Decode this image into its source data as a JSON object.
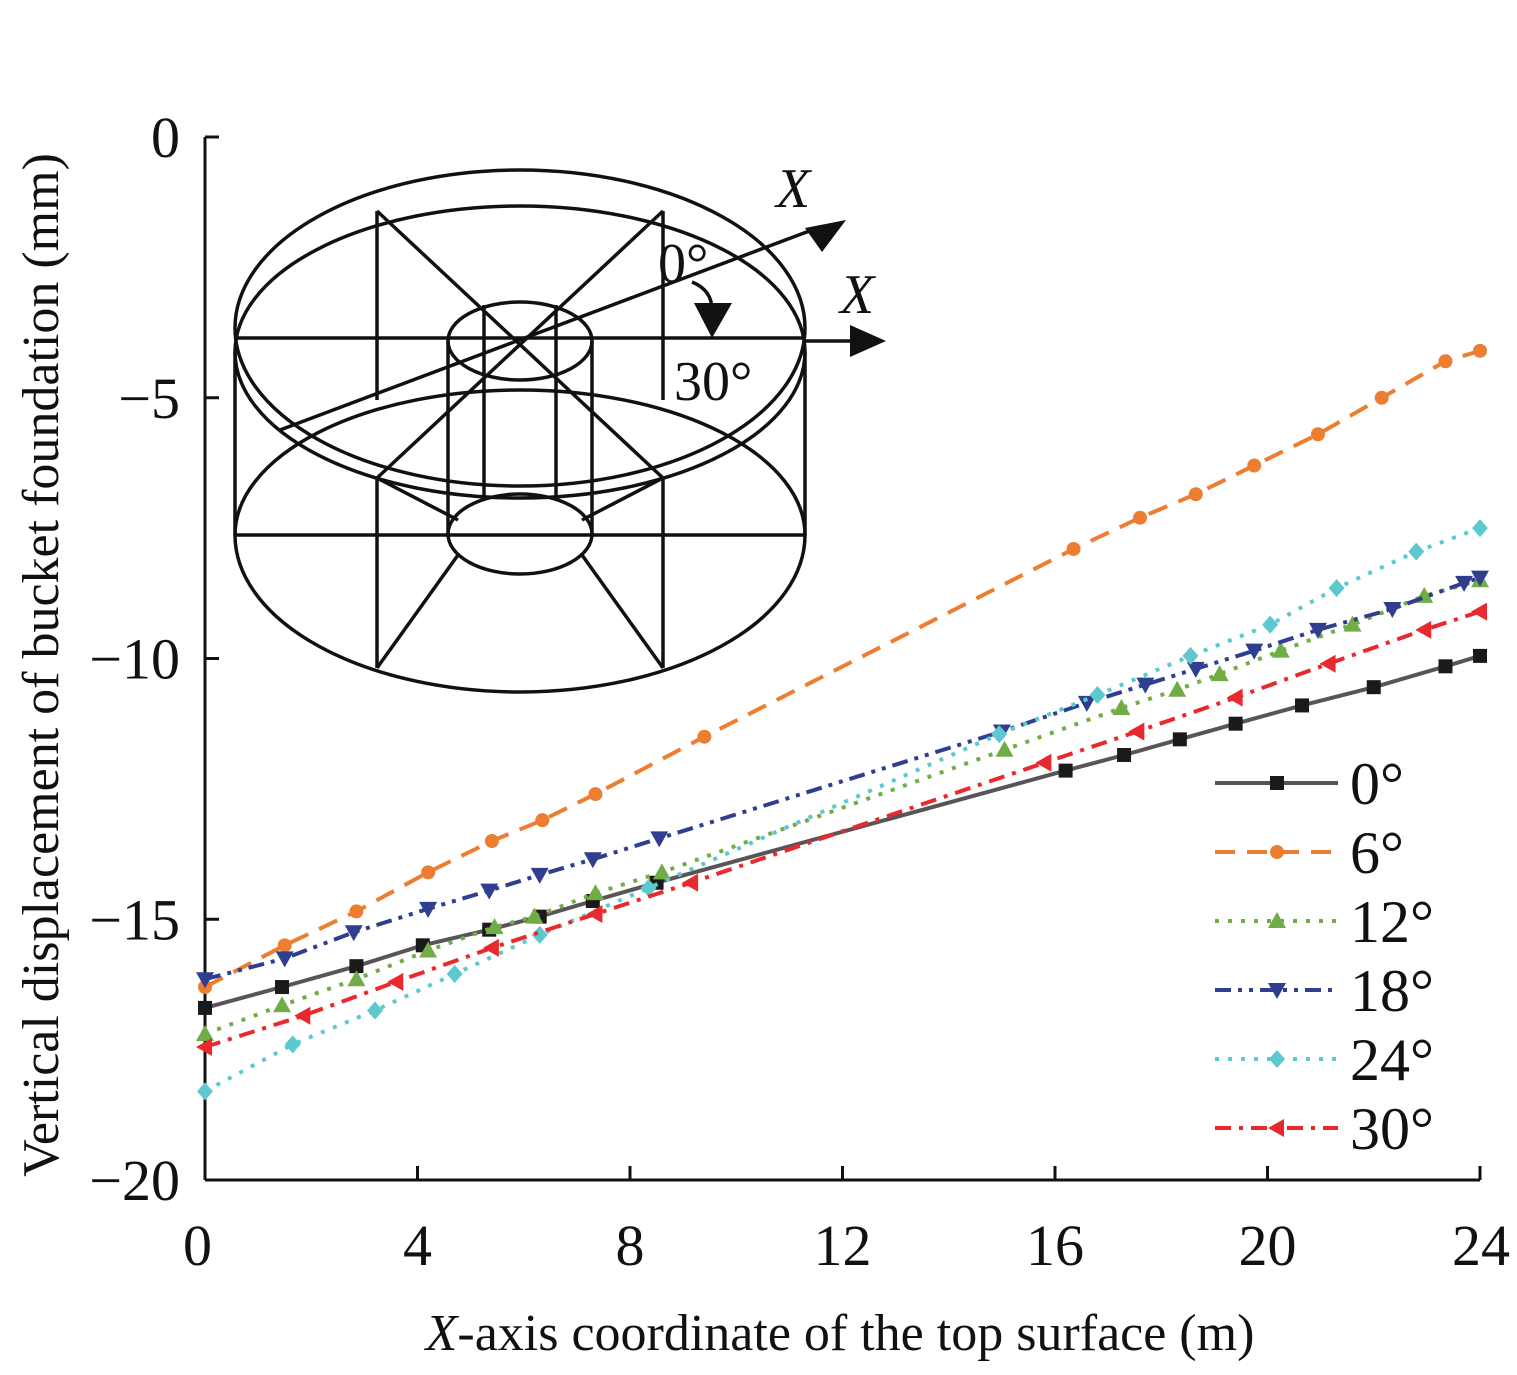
{
  "chart_data": {
    "type": "line",
    "title": "",
    "xlabel_prefix": "X",
    "xlabel_rest": "-axis coordinate of the top surface (m)",
    "ylabel": "Vertical displacement of bucket foundation (mm)",
    "xlim": [
      0,
      24
    ],
    "ylim": [
      -20,
      0
    ],
    "xticks": [
      0,
      4,
      8,
      12,
      16,
      20,
      24
    ],
    "xtick_labels": [
      "0",
      "4",
      "8",
      "12",
      "16",
      "20",
      "24"
    ],
    "yticks": [
      0,
      -5,
      -10,
      -15,
      -20
    ],
    "ytick_labels": [
      "0",
      "−5",
      "−10",
      "−15",
      "−20"
    ],
    "legend_position": "bottom-right",
    "series": [
      {
        "name": "0°",
        "color": "#595457",
        "marker_color": "#1a1a1a",
        "marker": "square",
        "dash": "solid",
        "x": [
          0,
          1.45,
          2.85,
          4.1,
          5.35,
          6.3,
          7.3,
          8.5,
          16.2,
          17.3,
          18.35,
          19.4,
          20.65,
          22.0,
          23.35,
          24.0
        ],
        "y": [
          -16.7,
          -16.3,
          -15.9,
          -15.5,
          -15.2,
          -14.95,
          -14.65,
          -14.3,
          -12.15,
          -11.85,
          -11.55,
          -11.25,
          -10.9,
          -10.55,
          -10.15,
          -9.95
        ]
      },
      {
        "name": "6°",
        "color": "#ed7d31",
        "marker_color": "#ed7d31",
        "marker": "circle",
        "dash": "dashed",
        "x": [
          0,
          1.5,
          2.85,
          4.2,
          5.4,
          6.35,
          7.35,
          9.4,
          16.35,
          17.6,
          18.65,
          19.75,
          20.95,
          22.15,
          23.35,
          24.0
        ],
        "y": [
          -16.3,
          -15.5,
          -14.85,
          -14.1,
          -13.5,
          -13.1,
          -12.6,
          -11.5,
          -7.9,
          -7.3,
          -6.85,
          -6.3,
          -5.7,
          -5.0,
          -4.3,
          -4.1
        ]
      },
      {
        "name": "12°",
        "color": "#70ad47",
        "marker_color": "#70ad47",
        "marker": "triangle-up",
        "dash": "dotted",
        "x": [
          0,
          1.45,
          2.85,
          4.2,
          5.45,
          6.2,
          7.35,
          8.6,
          15.05,
          17.25,
          18.3,
          19.1,
          20.25,
          21.6,
          22.95,
          24.0
        ],
        "y": [
          -17.2,
          -16.65,
          -16.15,
          -15.6,
          -15.15,
          -14.95,
          -14.5,
          -14.1,
          -11.75,
          -10.95,
          -10.6,
          -10.3,
          -9.85,
          -9.35,
          -8.8,
          -8.5
        ]
      },
      {
        "name": "18°",
        "color": "#2f3e8f",
        "marker_color": "#2f3e8f",
        "marker": "triangle-down",
        "dash": "dash-dot-dot",
        "x": [
          0,
          1.5,
          2.8,
          4.2,
          5.35,
          6.3,
          7.3,
          8.55,
          15.0,
          16.6,
          17.7,
          18.65,
          19.75,
          20.95,
          22.35,
          23.7,
          24.0
        ],
        "y": [
          -16.15,
          -15.75,
          -15.25,
          -14.8,
          -14.45,
          -14.15,
          -13.85,
          -13.45,
          -11.4,
          -10.85,
          -10.5,
          -10.2,
          -9.85,
          -9.45,
          -9.05,
          -8.55,
          -8.45
        ]
      },
      {
        "name": "24°",
        "color": "#5ec8cf",
        "marker_color": "#5ec8cf",
        "marker": "diamond",
        "dash": "dotted",
        "x": [
          0,
          1.65,
          3.2,
          4.7,
          6.3,
          8.35,
          14.95,
          16.8,
          18.55,
          20.05,
          21.3,
          22.8,
          24.0
        ],
        "y": [
          -18.3,
          -17.4,
          -16.75,
          -16.05,
          -15.3,
          -14.4,
          -11.45,
          -10.7,
          -9.95,
          -9.35,
          -8.65,
          -7.95,
          -7.5
        ]
      },
      {
        "name": "30°",
        "color": "#e8292d",
        "marker_color": "#e8292d",
        "marker": "triangle-left",
        "dash": "dash-dot",
        "x": [
          0,
          1.85,
          3.6,
          5.4,
          7.35,
          9.15,
          15.8,
          17.55,
          19.4,
          21.15,
          22.95,
          24.0
        ],
        "y": [
          -17.45,
          -16.85,
          -16.2,
          -15.55,
          -14.9,
          -14.3,
          -12.0,
          -11.4,
          -10.75,
          -10.1,
          -9.45,
          -9.1
        ]
      }
    ],
    "inset_labels": {
      "axis_label_upper": "X",
      "axis_label_lower": "X",
      "angle_upper": "0°",
      "angle_lower": "30°"
    }
  }
}
